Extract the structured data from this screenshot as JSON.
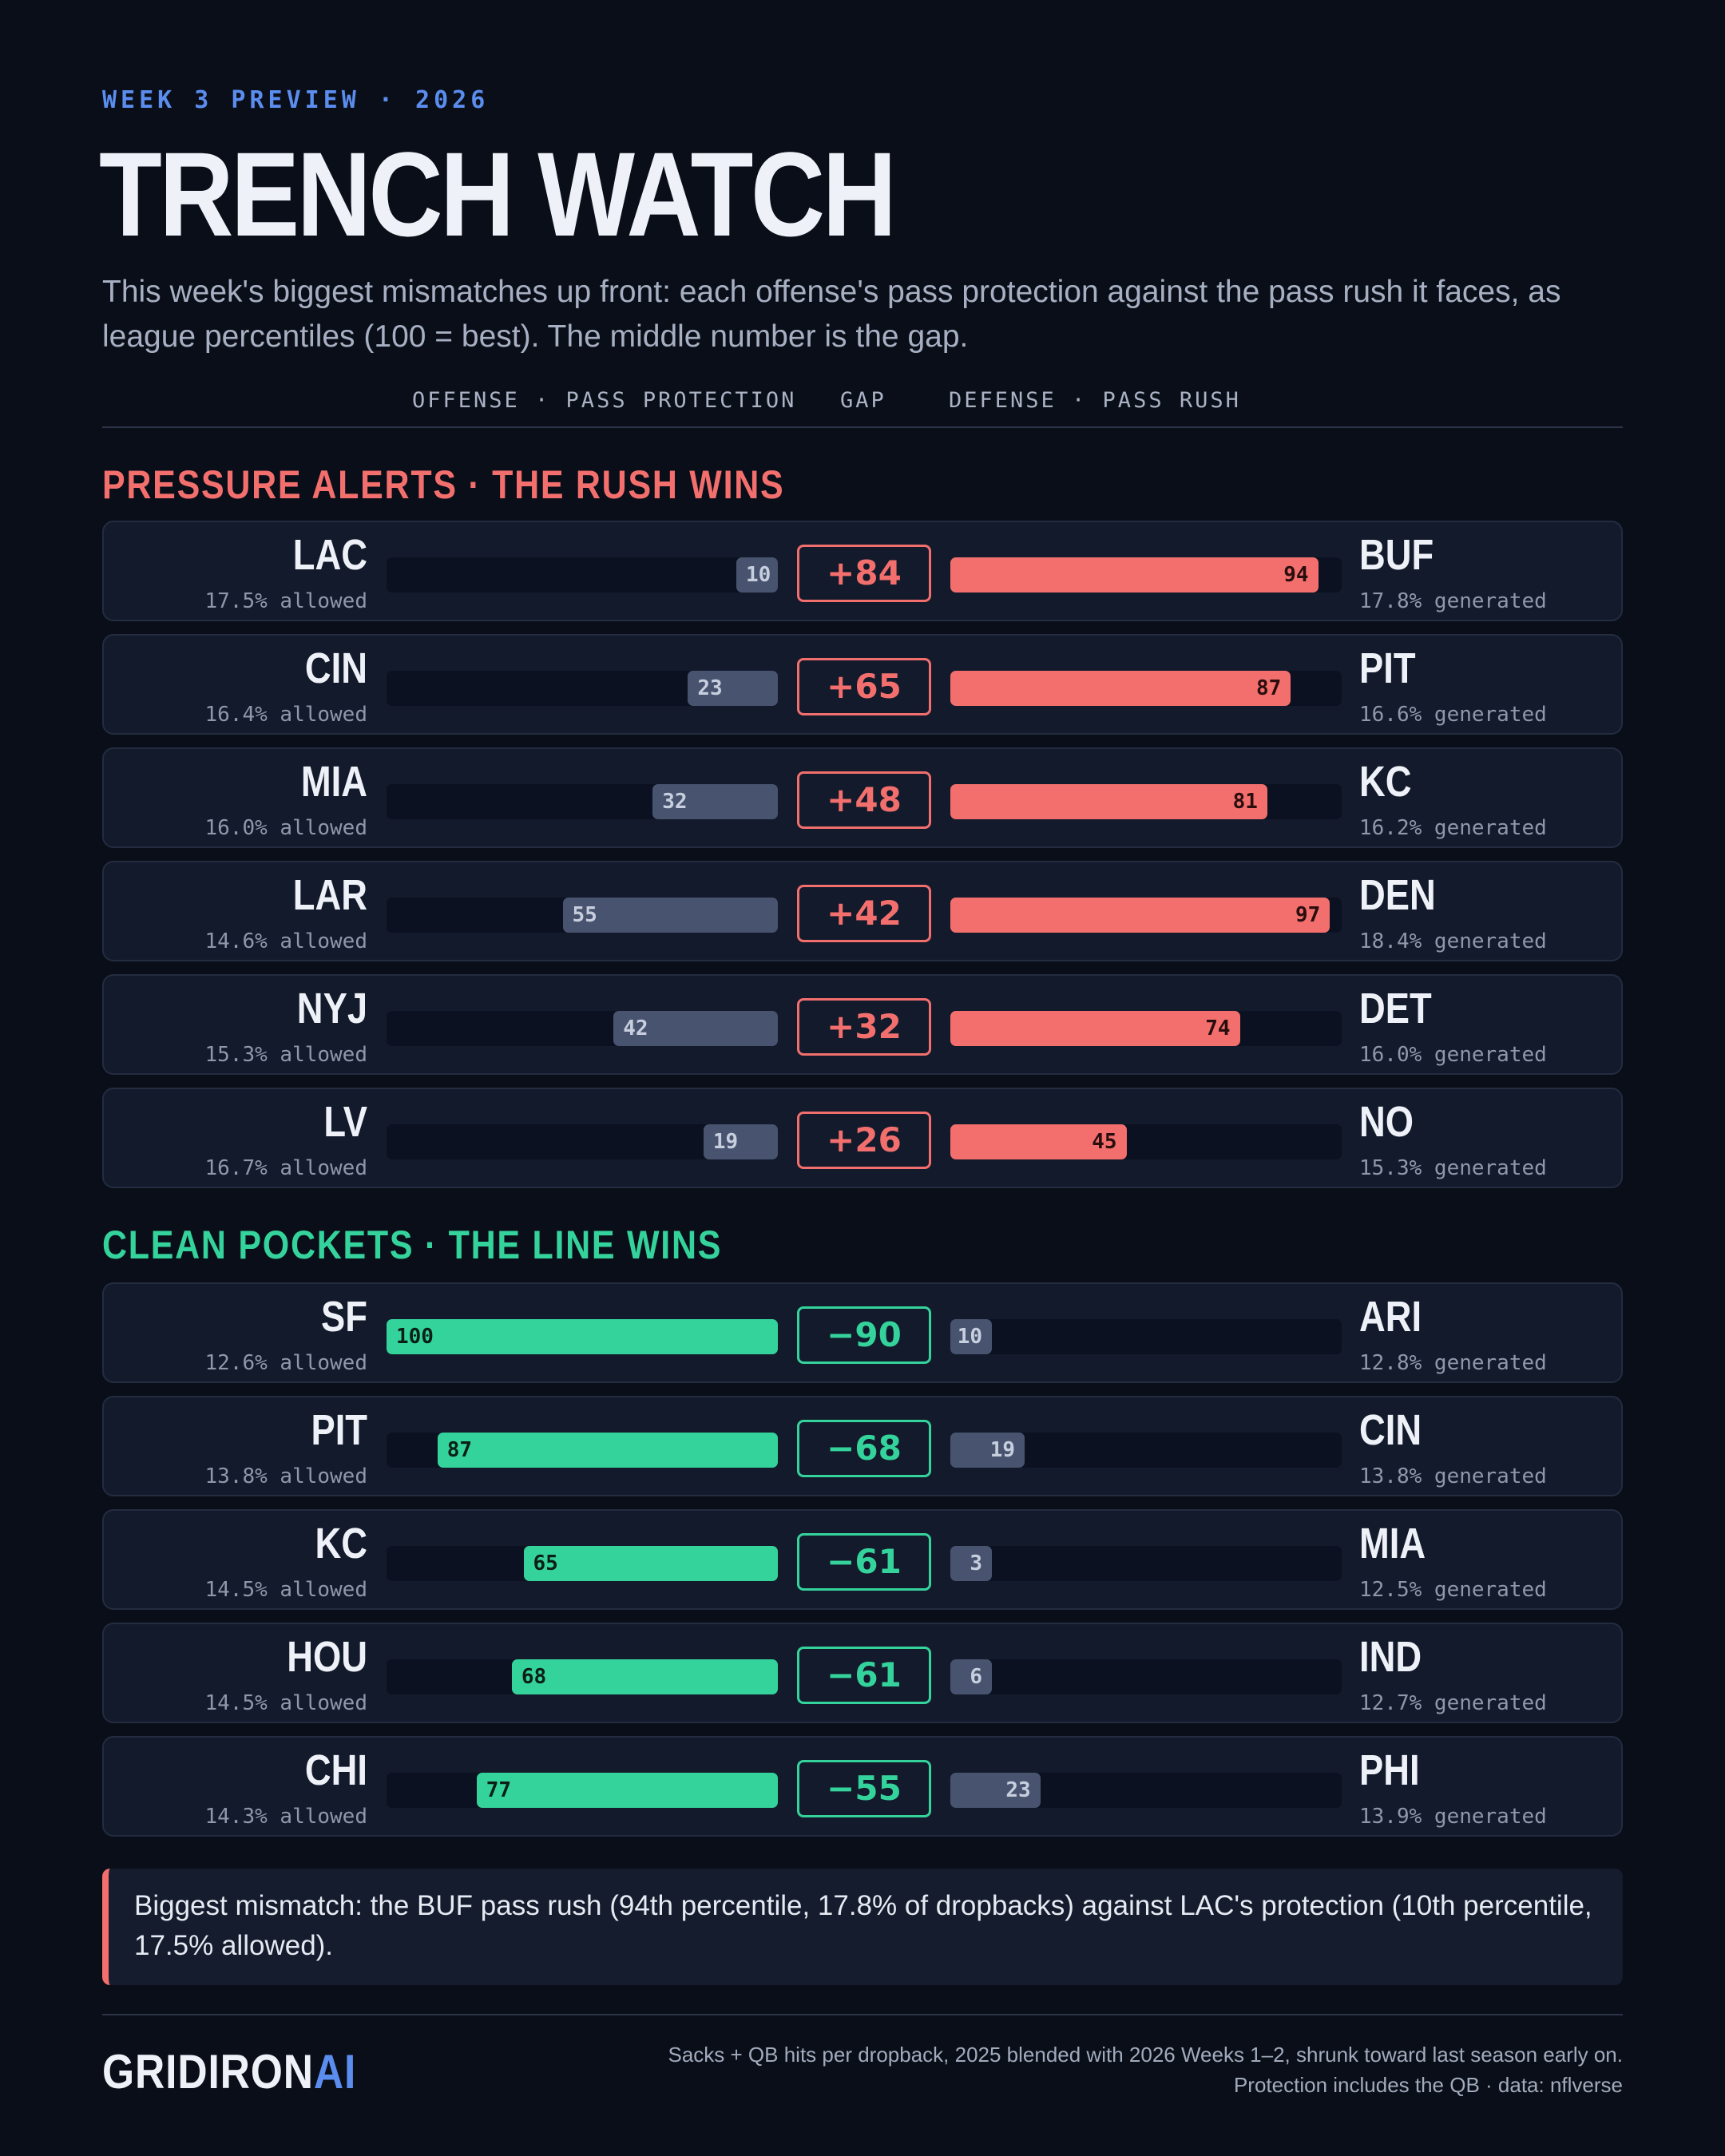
{
  "header": {
    "eyebrow": "WEEK 3 PREVIEW · 2026",
    "title": "TRENCH WATCH",
    "subtitle": "This week's biggest mismatches up front: each offense's pass protection against the pass rush it faces, as league percentiles (100 = best). The middle number is the gap."
  },
  "columns": {
    "offense": "OFFENSE · PASS PROTECTION",
    "gap": "GAP",
    "defense": "DEFENSE · PASS RUSH"
  },
  "colors": {
    "pressure": "#f26f6d",
    "clean": "#35d39c",
    "neutral_bar": "#48546f",
    "accent_blue": "#5b8def"
  },
  "chart_data": {
    "type": "bar",
    "scale": [
      0,
      100
    ],
    "sections": [
      {
        "title": "PRESSURE ALERTS · THE RUSH WINS",
        "tone": "pressure",
        "rows": [
          {
            "offense": "LAC",
            "offense_pct": 10,
            "offense_stat": "17.5% allowed",
            "gap": "+84",
            "defense": "BUF",
            "defense_pct": 94,
            "defense_stat": "17.8% generated"
          },
          {
            "offense": "CIN",
            "offense_pct": 23,
            "offense_stat": "16.4% allowed",
            "gap": "+65",
            "defense": "PIT",
            "defense_pct": 87,
            "defense_stat": "16.6% generated"
          },
          {
            "offense": "MIA",
            "offense_pct": 32,
            "offense_stat": "16.0% allowed",
            "gap": "+48",
            "defense": "KC",
            "defense_pct": 81,
            "defense_stat": "16.2% generated"
          },
          {
            "offense": "LAR",
            "offense_pct": 55,
            "offense_stat": "14.6% allowed",
            "gap": "+42",
            "defense": "DEN",
            "defense_pct": 97,
            "defense_stat": "18.4% generated"
          },
          {
            "offense": "NYJ",
            "offense_pct": 42,
            "offense_stat": "15.3% allowed",
            "gap": "+32",
            "defense": "DET",
            "defense_pct": 74,
            "defense_stat": "16.0% generated"
          },
          {
            "offense": "LV",
            "offense_pct": 19,
            "offense_stat": "16.7% allowed",
            "gap": "+26",
            "defense": "NO",
            "defense_pct": 45,
            "defense_stat": "15.3% generated"
          }
        ]
      },
      {
        "title": "CLEAN POCKETS · THE LINE WINS",
        "tone": "clean",
        "rows": [
          {
            "offense": "SF",
            "offense_pct": 100,
            "offense_stat": "12.6% allowed",
            "gap": "−90",
            "defense": "ARI",
            "defense_pct": 10,
            "defense_stat": "12.8% generated"
          },
          {
            "offense": "PIT",
            "offense_pct": 87,
            "offense_stat": "13.8% allowed",
            "gap": "−68",
            "defense": "CIN",
            "defense_pct": 19,
            "defense_stat": "13.8% generated"
          },
          {
            "offense": "KC",
            "offense_pct": 65,
            "offense_stat": "14.5% allowed",
            "gap": "−61",
            "defense": "MIA",
            "defense_pct": 3,
            "defense_stat": "12.5% generated"
          },
          {
            "offense": "HOU",
            "offense_pct": 68,
            "offense_stat": "14.5% allowed",
            "gap": "−61",
            "defense": "IND",
            "defense_pct": 6,
            "defense_stat": "12.7% generated"
          },
          {
            "offense": "CHI",
            "offense_pct": 77,
            "offense_stat": "14.3% allowed",
            "gap": "−55",
            "defense": "PHI",
            "defense_pct": 23,
            "defense_stat": "13.9% generated"
          }
        ]
      }
    ]
  },
  "callout": "Biggest mismatch: the BUF pass rush (94th percentile, 17.8% of dropbacks) against LAC's protection (10th percentile, 17.5% allowed).",
  "footer": {
    "brand_main": "GRIDIRON",
    "brand_accent": "AI",
    "note_line1": "Sacks + QB hits per dropback, 2025 blended with 2026 Weeks 1–2, shrunk toward last season early on.",
    "note_line2": "Protection includes the QB · data: nflverse"
  }
}
